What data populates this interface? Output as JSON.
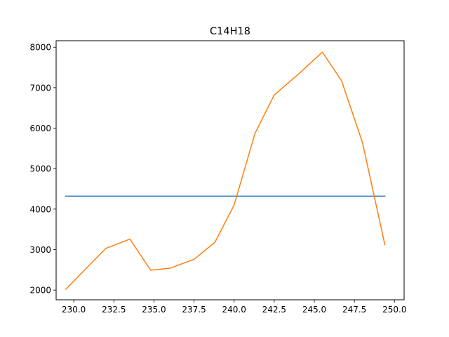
{
  "chart_data": {
    "type": "line",
    "title": "C14H18",
    "xlabel": "",
    "ylabel": "",
    "xlim": [
      228.9,
      250.6
    ],
    "ylim": [
      1760,
      8160
    ],
    "xticks": [
      230.0,
      232.5,
      235.0,
      237.5,
      240.0,
      242.5,
      245.0,
      247.5,
      250.0
    ],
    "xtick_labels": [
      "230.0",
      "232.5",
      "235.0",
      "237.5",
      "240.0",
      "242.5",
      "245.0",
      "247.5",
      "250.0"
    ],
    "yticks": [
      2000,
      3000,
      4000,
      5000,
      6000,
      7000,
      8000
    ],
    "ytick_labels": [
      "2000",
      "3000",
      "4000",
      "5000",
      "6000",
      "7000",
      "8000"
    ],
    "grid": false,
    "series": [
      {
        "color": "#1f77b4",
        "x": [
          229.5,
          249.4
        ],
        "y": [
          4320,
          4320
        ]
      },
      {
        "color": "#ff7f0e",
        "x": [
          229.5,
          232.0,
          233.5,
          234.8,
          236.0,
          237.5,
          238.8,
          240.0,
          241.3,
          242.5,
          244.0,
          245.5,
          246.7,
          248.0,
          249.4
        ],
        "y": [
          2020,
          3030,
          3260,
          2490,
          2540,
          2760,
          3180,
          4100,
          5870,
          6820,
          7330,
          7880,
          7170,
          5650,
          3120
        ]
      }
    ]
  }
}
